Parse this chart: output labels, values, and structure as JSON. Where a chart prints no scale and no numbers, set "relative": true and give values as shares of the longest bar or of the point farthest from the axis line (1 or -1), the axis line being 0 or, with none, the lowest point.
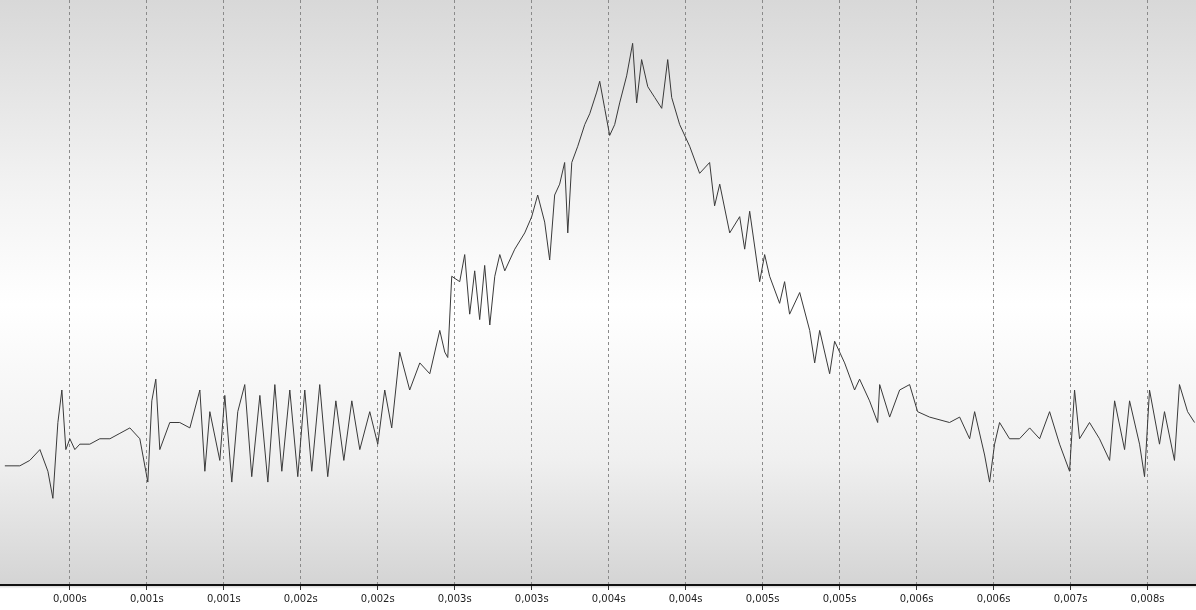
{
  "chart_data": {
    "type": "line",
    "relative": true,
    "color": "#3a3a3a",
    "marker": "none",
    "grid": "x",
    "xlim": [
      -0.00049,
      0.0079
    ],
    "xticks": [
      {
        "value": 0,
        "label": "0,000s"
      },
      {
        "value": 0.00054,
        "label": "0,001s"
      },
      {
        "value": 0.00108,
        "label": "0,001s"
      },
      {
        "value": 0.00162,
        "label": "0,002s"
      },
      {
        "value": 0.00216,
        "label": "0,002s"
      },
      {
        "value": 0.0027,
        "label": "0,003s"
      },
      {
        "value": 0.00324,
        "label": "0,003s"
      },
      {
        "value": 0.00378,
        "label": "0,004s"
      },
      {
        "value": 0.00432,
        "label": "0,004s"
      },
      {
        "value": 0.00486,
        "label": "0,005s"
      },
      {
        "value": 0.0054,
        "label": "0,005s"
      },
      {
        "value": 0.00594,
        "label": "0,006s"
      },
      {
        "value": 0.00648,
        "label": "0,006s"
      },
      {
        "value": 0.00702,
        "label": "0,007s"
      },
      {
        "value": 0.00756,
        "label": "0,008s"
      }
    ],
    "x": [
      -0.000456,
      -0.000351,
      -0.000281,
      -0.00021,
      -0.000154,
      -0.000119,
      -8.4e-05,
      -5.6e-05,
      -2.8e-05,
      0,
      3.5e-05,
      7e-05,
      0.00014,
      0.00021,
      0.000281,
      0.000351,
      0.000421,
      0.000491,
      0.000547,
      0.000575,
      0.000603,
      0.000631,
      0.000701,
      0.000771,
      0.000842,
      0.000912,
      0.000947,
      0.000982,
      0.001052,
      0.001087,
      0.001136,
      0.001178,
      0.001227,
      0.001276,
      0.001333,
      0.001389,
      0.001438,
      0.001487,
      0.001543,
      0.001599,
      0.001648,
      0.001697,
      0.001753,
      0.001809,
      0.001866,
      0.001922,
      0.001978,
      0.002034,
      0.002104,
      0.00216,
      0.002209,
      0.002258,
      0.002314,
      0.002384,
      0.002455,
      0.002525,
      0.002595,
      0.00263,
      0.002651,
      0.002679,
      0.002735,
      0.00277,
      0.002805,
      0.00284,
      0.002875,
      0.00291,
      0.002946,
      0.002981,
      0.003016,
      0.003051,
      0.003121,
      0.003191,
      0.00324,
      0.003282,
      0.003331,
      0.003366,
      0.003401,
      0.003436,
      0.003471,
      0.003493,
      0.003521,
      0.003563,
      0.003612,
      0.003647,
      0.003696,
      0.003717,
      0.003752,
      0.003787,
      0.003822,
      0.003857,
      0.003906,
      0.003948,
      0.003976,
      0.004011,
      0.004054,
      0.004103,
      0.004152,
      0.004194,
      0.004222,
      0.004278,
      0.004348,
      0.004418,
      0.004488,
      0.004523,
      0.004559,
      0.004629,
      0.004699,
      0.004734,
      0.004769,
      0.004839,
      0.004874,
      0.004909,
      0.004979,
      0.005014,
      0.005049,
      0.00512,
      0.00519,
      0.005225,
      0.00526,
      0.00533,
      0.005365,
      0.005435,
      0.005505,
      0.00554,
      0.00561,
      0.005667,
      0.005681,
      0.005751,
      0.005821,
      0.005891,
      0.005947,
      0.006031,
      0.006171,
      0.006242,
      0.006312,
      0.006347,
      0.006417,
      0.006452,
      0.006487,
      0.006522,
      0.006592,
      0.006662,
      0.006733,
      0.006803,
      0.006873,
      0.006943,
      0.007013,
      0.007048,
      0.007083,
      0.007153,
      0.007223,
      0.007294,
      0.007329,
      0.007399,
      0.007434,
      0.007504,
      0.007539,
      0.007574,
      0.007644,
      0.007679,
      0.007749,
      0.007784,
      0.007841,
      0.00789
    ],
    "values": [
      0.22,
      0.22,
      0.23,
      0.25,
      0.21,
      0.16,
      0.3,
      0.36,
      0.25,
      0.27,
      0.25,
      0.26,
      0.26,
      0.27,
      0.27,
      0.28,
      0.29,
      0.27,
      0.19,
      0.34,
      0.38,
      0.25,
      0.3,
      0.3,
      0.29,
      0.36,
      0.21,
      0.32,
      0.23,
      0.35,
      0.19,
      0.32,
      0.37,
      0.2,
      0.35,
      0.19,
      0.37,
      0.21,
      0.36,
      0.2,
      0.36,
      0.21,
      0.37,
      0.2,
      0.34,
      0.23,
      0.34,
      0.25,
      0.32,
      0.26,
      0.36,
      0.29,
      0.43,
      0.36,
      0.41,
      0.39,
      0.47,
      0.43,
      0.42,
      0.57,
      0.56,
      0.61,
      0.5,
      0.58,
      0.49,
      0.59,
      0.48,
      0.57,
      0.61,
      0.58,
      0.62,
      0.65,
      0.68,
      0.72,
      0.67,
      0.6,
      0.72,
      0.74,
      0.78,
      0.65,
      0.78,
      0.81,
      0.85,
      0.87,
      0.91,
      0.93,
      0.88,
      0.83,
      0.85,
      0.89,
      0.94,
      1,
      0.89,
      0.97,
      0.92,
      0.9,
      0.88,
      0.97,
      0.9,
      0.85,
      0.81,
      0.76,
      0.78,
      0.7,
      0.74,
      0.65,
      0.68,
      0.62,
      0.69,
      0.56,
      0.61,
      0.57,
      0.52,
      0.56,
      0.5,
      0.54,
      0.47,
      0.41,
      0.47,
      0.39,
      0.45,
      0.41,
      0.36,
      0.38,
      0.34,
      0.3,
      0.37,
      0.31,
      0.36,
      0.37,
      0.32,
      0.31,
      0.3,
      0.31,
      0.27,
      0.32,
      0.24,
      0.19,
      0.26,
      0.3,
      0.27,
      0.27,
      0.29,
      0.27,
      0.32,
      0.26,
      0.21,
      0.36,
      0.27,
      0.3,
      0.27,
      0.23,
      0.34,
      0.25,
      0.34,
      0.26,
      0.2,
      0.36,
      0.26,
      0.32,
      0.23,
      0.37,
      0.32,
      0.3
    ]
  }
}
